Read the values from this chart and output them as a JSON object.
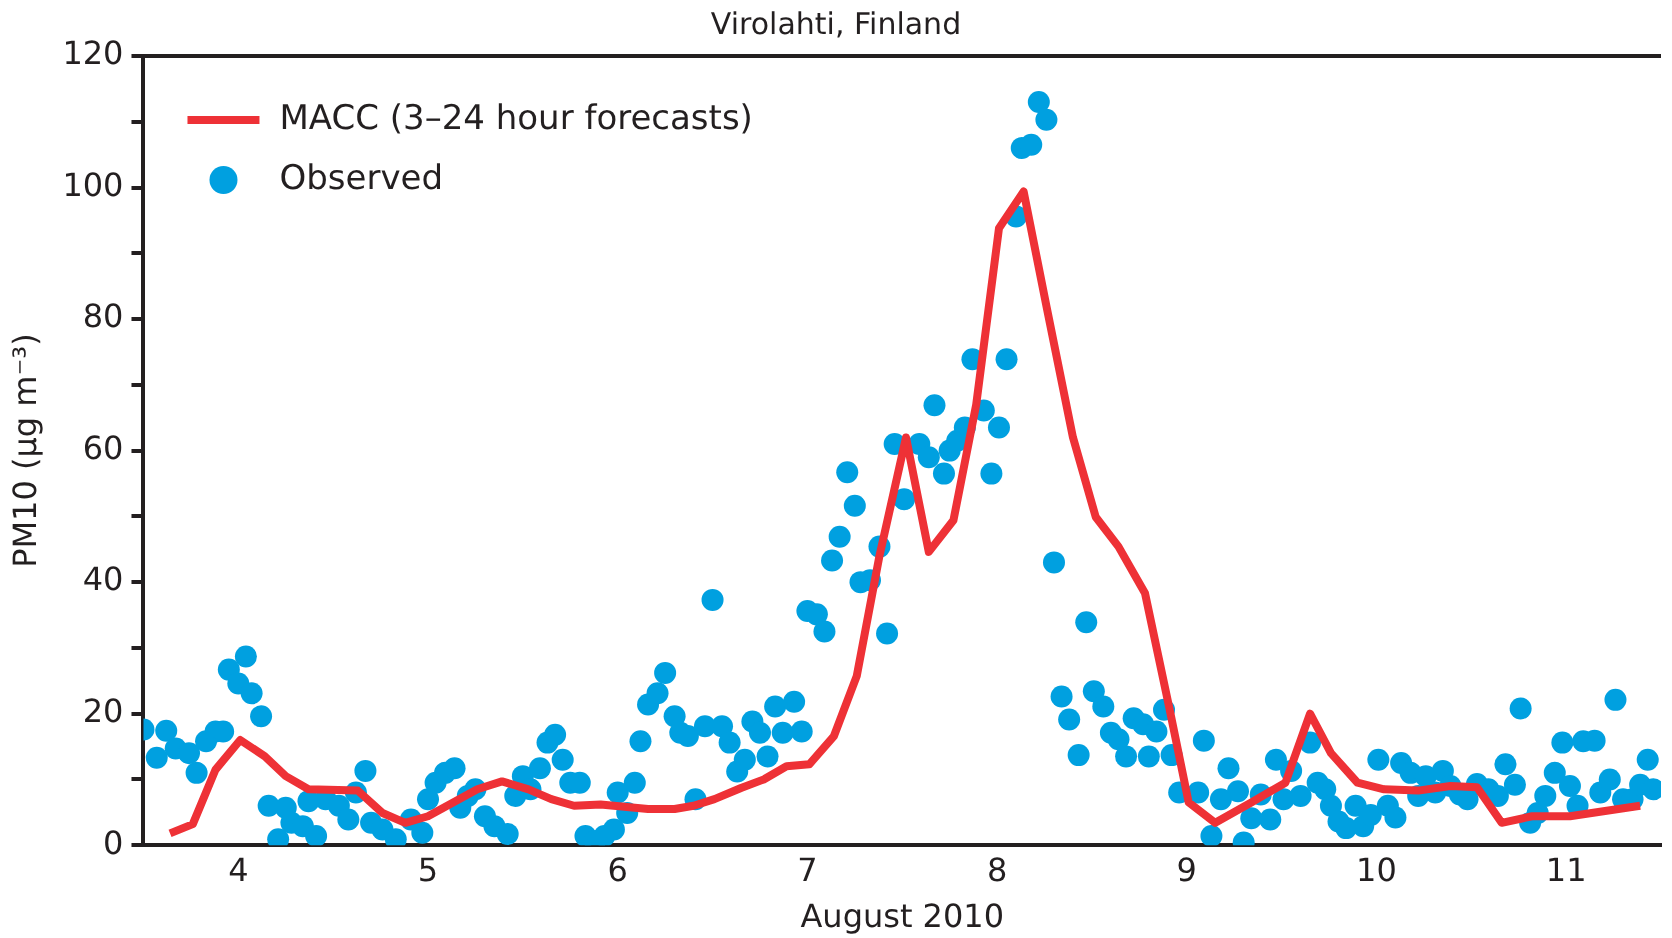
{
  "chart_data": {
    "type": "scatter",
    "title": "Virolahti, Finland",
    "xlabel": "August 2010",
    "ylabel": "PM10 (μg m⁻³)",
    "xlim": [
      3.5,
      11.5
    ],
    "xticks": [
      4,
      {
        "value": 4.5,
        "label": null
      },
      5,
      {
        "value": 5.5,
        "label": null
      },
      6,
      {
        "value": 6.5,
        "label": null
      },
      7,
      {
        "value": 7.5,
        "label": null
      },
      8,
      {
        "value": 8.5,
        "label": null
      },
      9,
      {
        "value": 9.5,
        "label": null
      },
      10,
      {
        "value": 10.5,
        "label": null
      },
      11
    ],
    "ylim": [
      0,
      120
    ],
    "yticks": [
      0,
      {
        "value": 10,
        "label": null
      },
      20,
      {
        "value": 30,
        "label": null
      },
      40,
      {
        "value": 50,
        "label": null
      },
      60,
      {
        "value": 70,
        "label": null
      },
      80,
      {
        "value": 90,
        "label": null
      },
      100,
      {
        "value": 110,
        "label": null
      },
      120
    ],
    "grid": false,
    "legend": "top left",
    "series": [
      {
        "name": "MACC (3–24 hour forecasts)",
        "type": "line",
        "marker": "none",
        "color": "#ee3136",
        "x": [
          3.64,
          3.76,
          3.88,
          4.01,
          4.14,
          4.25,
          4.37,
          4.63,
          4.76,
          4.88,
          5.0,
          5.26,
          5.39,
          5.53,
          5.65,
          5.77,
          5.91,
          6.16,
          6.3,
          6.4,
          6.51,
          6.65,
          6.77,
          6.89,
          7.01,
          7.14,
          7.26,
          7.38,
          7.52,
          7.64,
          7.77,
          7.89,
          8.01,
          8.14,
          8.26,
          8.4,
          8.52,
          8.64,
          8.78,
          8.91,
          9.01,
          9.15,
          9.34,
          9.52,
          9.65,
          9.76,
          9.9,
          10.04,
          10.22,
          10.39,
          10.53,
          10.66,
          10.82,
          11.02,
          11.39
        ],
        "values": [
          1.8,
          3.2,
          11.5,
          16,
          13.5,
          10.5,
          8.5,
          8.3,
          4.9,
          3.4,
          4.4,
          8.5,
          9.7,
          8.5,
          7,
          6,
          6.2,
          5.5,
          5.5,
          6,
          7,
          8.7,
          10,
          12,
          12.3,
          16.6,
          25.7,
          44,
          62,
          44.6,
          49.4,
          67,
          93.8,
          99.4,
          82,
          62,
          49.9,
          45.4,
          38.3,
          20.6,
          6.5,
          3.4,
          6.5,
          9.5,
          20,
          14,
          9.5,
          8.5,
          8.3,
          9,
          8.8,
          3.4,
          4.4,
          4.4,
          6
        ]
      },
      {
        "name": "Observed",
        "type": "scatter",
        "marker": "circle",
        "color": "#00a0e0",
        "x": [
          3.5,
          3.57,
          3.62,
          3.67,
          3.74,
          3.78,
          3.83,
          3.88,
          3.92,
          3.95,
          4.0,
          4.04,
          4.07,
          4.12,
          4.16,
          4.21,
          4.25,
          4.28,
          4.34,
          4.37,
          4.41,
          4.46,
          4.53,
          4.58,
          4.62,
          4.67,
          4.7,
          4.76,
          4.83,
          4.91,
          4.97,
          5.0,
          5.04,
          5.09,
          5.14,
          5.17,
          5.21,
          5.25,
          5.3,
          5.35,
          5.42,
          5.46,
          5.5,
          5.54,
          5.59,
          5.63,
          5.67,
          5.71,
          5.75,
          5.8,
          5.83,
          5.88,
          5.93,
          5.98,
          6.0,
          6.05,
          6.09,
          6.12,
          6.16,
          6.21,
          6.25,
          6.3,
          6.33,
          6.37,
          6.41,
          6.46,
          6.5,
          6.55,
          6.59,
          6.63,
          6.67,
          6.71,
          6.75,
          6.79,
          6.83,
          6.87,
          6.93,
          6.97,
          7.0,
          7.05,
          7.09,
          7.13,
          7.17,
          7.21,
          7.25,
          7.28,
          7.33,
          7.38,
          7.42,
          7.46,
          7.51,
          7.59,
          7.64,
          7.67,
          7.72,
          7.75,
          7.79,
          7.83,
          7.87,
          7.93,
          7.97,
          8.01,
          8.05,
          8.1,
          8.13,
          8.18,
          8.22,
          8.26,
          8.3,
          8.34,
          8.38,
          8.43,
          8.47,
          8.51,
          8.56,
          8.6,
          8.64,
          8.68,
          8.72,
          8.77,
          8.8,
          8.84,
          8.88,
          8.92,
          8.96,
          9.06,
          9.09,
          9.13,
          9.18,
          9.22,
          9.27,
          9.3,
          9.34,
          9.39,
          9.44,
          9.47,
          9.51,
          9.55,
          9.6,
          9.65,
          9.69,
          9.73,
          9.76,
          9.8,
          9.84,
          9.89,
          9.93,
          9.97,
          10.01,
          10.06,
          10.1,
          10.13,
          10.18,
          10.22,
          10.26,
          10.31,
          10.35,
          10.39,
          10.44,
          10.48,
          10.53,
          10.59,
          10.64,
          10.68,
          10.73,
          10.76,
          10.81,
          10.85,
          10.89,
          10.94,
          10.98,
          11.02,
          11.06,
          11.09,
          11.15,
          11.18,
          11.23,
          11.26,
          11.3,
          11.35,
          11.39,
          11.43,
          11.46
        ],
        "values": [
          17.6,
          13.3,
          17.4,
          14.7,
          14,
          11,
          15.8,
          17.3,
          17.3,
          26.7,
          24.6,
          28.7,
          23.1,
          19.6,
          6,
          0.9,
          5.7,
          3.4,
          2.9,
          6.7,
          1.4,
          7,
          6,
          3.9,
          8,
          11.3,
          3.4,
          2.4,
          0.9,
          3.9,
          1.9,
          7,
          9.5,
          11,
          11.7,
          5.7,
          7.5,
          8.5,
          4.4,
          2.9,
          1.7,
          7.5,
          10.5,
          8.5,
          11.7,
          15.6,
          16.8,
          13,
          9.5,
          9.5,
          1.4,
          0.6,
          1.4,
          2.4,
          8,
          4.9,
          9.5,
          15.8,
          21.4,
          23.1,
          26.2,
          19.6,
          17.1,
          16.6,
          7,
          18.1,
          37.3,
          18.1,
          15.6,
          11.2,
          13,
          18.8,
          17.1,
          13.5,
          21.1,
          17.1,
          21.8,
          17.3,
          35.6,
          35.1,
          32.5,
          43.3,
          46.9,
          56.7,
          51.6,
          40,
          40.3,
          45.4,
          32.2,
          61,
          52.6,
          61,
          59,
          66.9,
          56.5,
          60,
          61.5,
          63.5,
          73.9,
          66.1,
          56.5,
          63.5,
          73.9,
          95.6,
          106,
          106.5,
          113,
          110.3,
          43,
          22.6,
          19.1,
          13.7,
          33.9,
          23.4,
          21.1,
          17.1,
          16.1,
          13.5,
          19.3,
          18.4,
          13.5,
          17.3,
          20.6,
          13.7,
          8,
          8,
          15.9,
          1.4,
          7,
          11.7,
          8.2,
          0.4,
          4.1,
          7.7,
          3.9,
          13,
          7,
          11.3,
          7.5,
          15.6,
          9.5,
          8.5,
          6,
          3.6,
          2.6,
          6,
          2.9,
          4.6,
          13,
          6,
          4.2,
          12.5,
          11,
          7.5,
          10.5,
          8,
          11.3,
          9,
          7.7,
          7,
          9.3,
          8.5,
          7.5,
          12.3,
          9.2,
          20.8,
          3.4,
          4.9,
          7.5,
          11,
          15.6,
          9,
          6,
          15.8,
          15.9,
          8,
          10,
          22.1,
          7,
          7,
          9.2,
          13,
          8.5
        ]
      }
    ]
  }
}
